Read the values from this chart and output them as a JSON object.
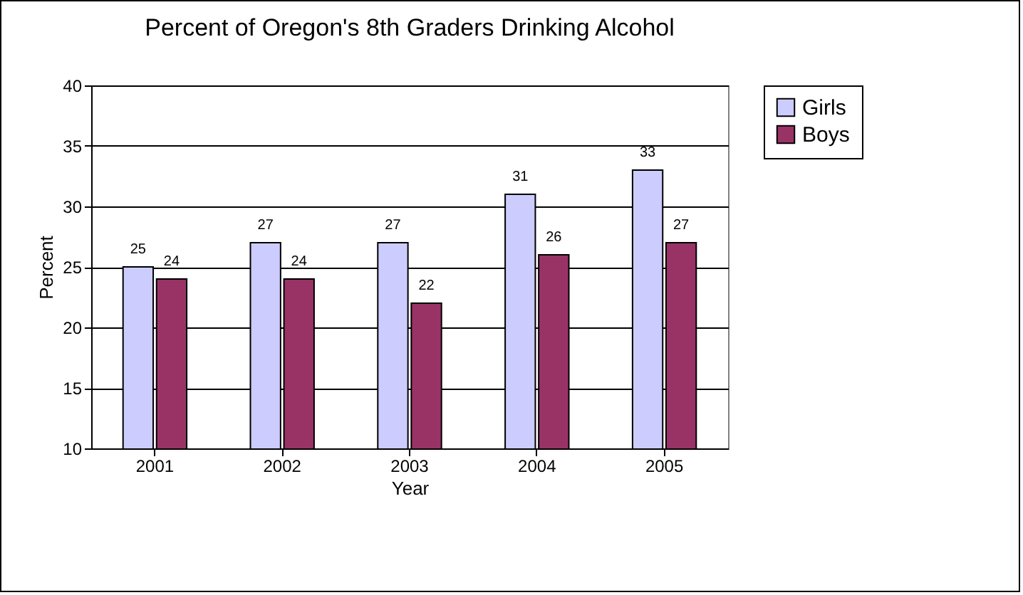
{
  "chart_data": {
    "type": "bar",
    "title": "Percent of Oregon's 8th Graders Drinking Alcohol",
    "xlabel": "Year",
    "ylabel": "Percent",
    "categories": [
      "2001",
      "2002",
      "2003",
      "2004",
      "2005"
    ],
    "series": [
      {
        "name": "Girls",
        "color": "#ccccff",
        "values": [
          25,
          27,
          27,
          31,
          33
        ]
      },
      {
        "name": "Boys",
        "color": "#993366",
        "values": [
          24,
          24,
          22,
          26,
          27
        ]
      }
    ],
    "ylim": [
      10,
      40
    ],
    "yticks": [
      10,
      15,
      20,
      25,
      30,
      35,
      40
    ],
    "grid": "y",
    "legend": "right",
    "data_labels": true
  }
}
